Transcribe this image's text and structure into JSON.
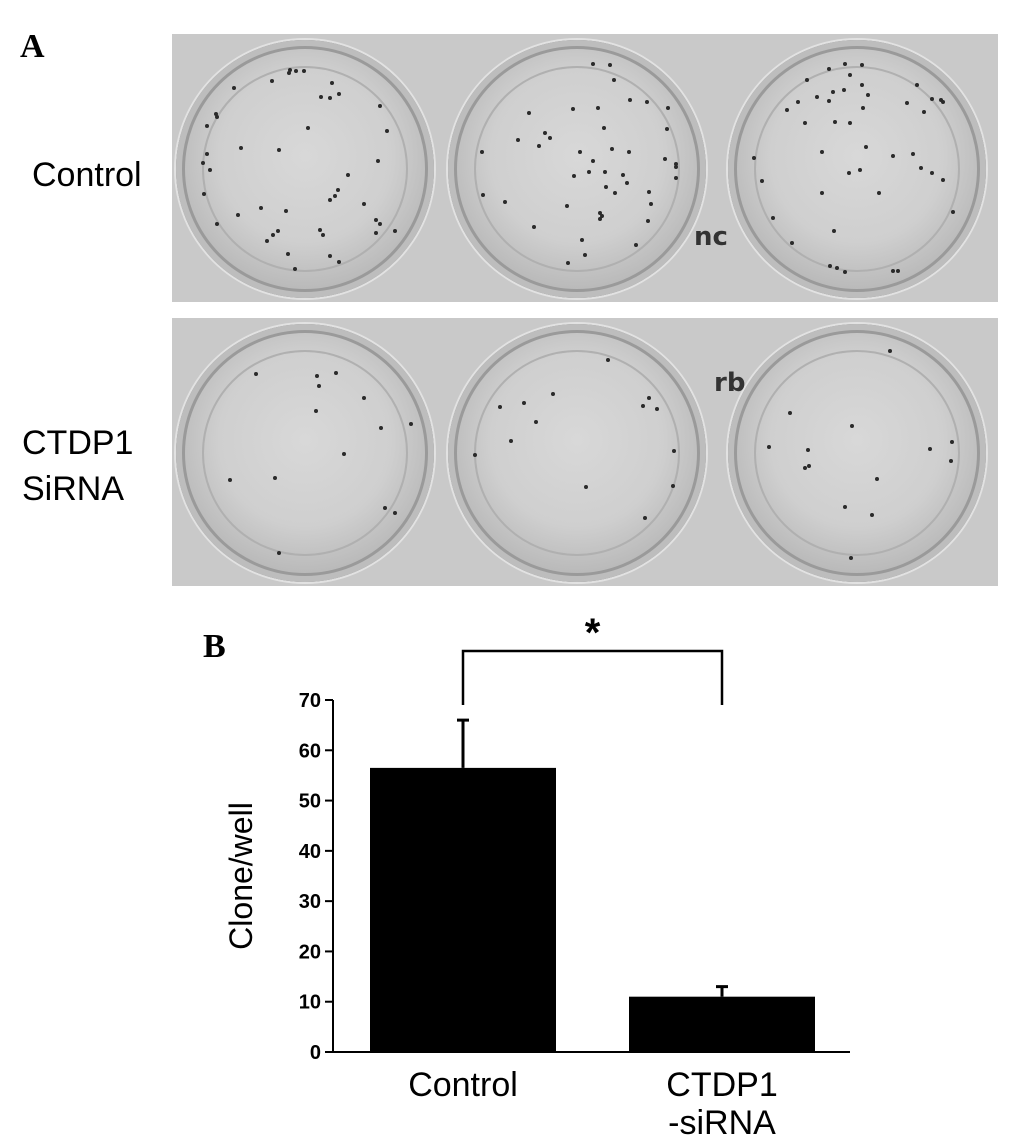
{
  "panel_a": {
    "letter": "A",
    "row_labels": [
      "Control",
      "CTDP1\nSiRNA"
    ],
    "plate_marks": [
      "nc",
      "rb"
    ]
  },
  "panel_b": {
    "letter": "B"
  },
  "chart_data": {
    "type": "bar",
    "categories": [
      "Control",
      "CTDP1\n-siRNA"
    ],
    "values": [
      56.5,
      11
    ],
    "errors": [
      9.5,
      2
    ],
    "ylabel": "Clone/well",
    "xlabel": "",
    "ylim": [
      0,
      70
    ],
    "yticks": [
      0,
      10,
      20,
      30,
      40,
      50,
      60,
      70
    ],
    "significance": {
      "symbol": "*",
      "between": [
        0,
        1
      ]
    },
    "grid": false,
    "bar_color": "#000000"
  }
}
